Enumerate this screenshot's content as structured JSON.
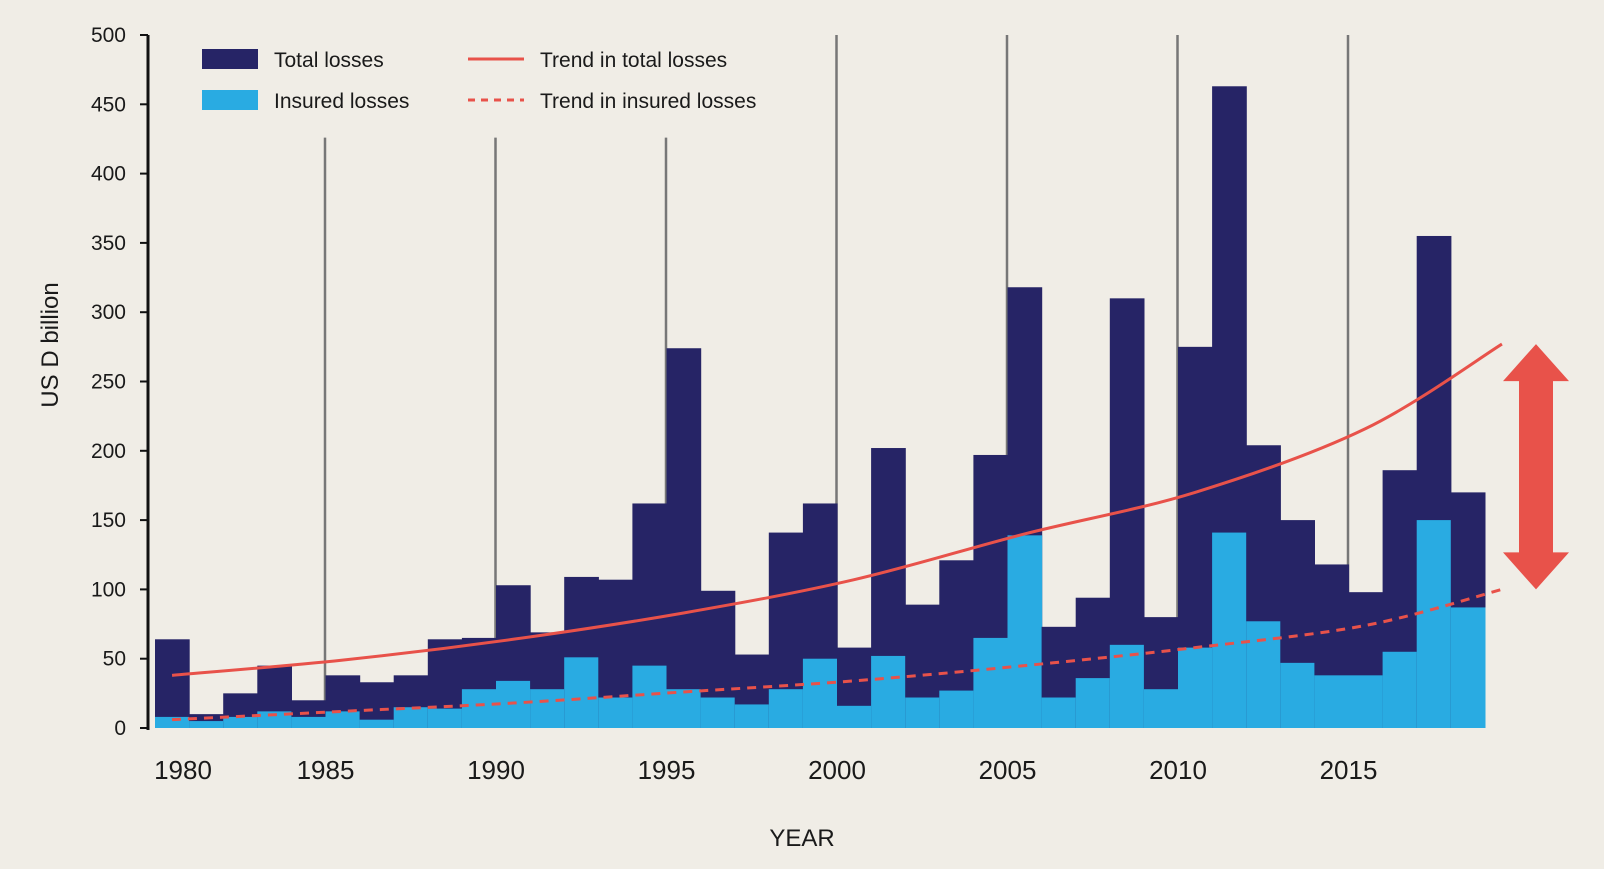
{
  "chart_data": {
    "type": "bar",
    "title": "",
    "xlabel": "YEAR",
    "ylabel": "US D billion",
    "ylim": [
      0,
      500
    ],
    "yticks": [
      0,
      50,
      100,
      150,
      200,
      250,
      300,
      350,
      400,
      450,
      500
    ],
    "xticks": [
      1980,
      1985,
      1990,
      1995,
      2000,
      2005,
      2010,
      2015
    ],
    "x": [
      1980,
      1981,
      1982,
      1983,
      1984,
      1985,
      1986,
      1987,
      1988,
      1989,
      1990,
      1991,
      1992,
      1993,
      1994,
      1995,
      1996,
      1997,
      1998,
      1999,
      2000,
      2001,
      2002,
      2003,
      2004,
      2005,
      2006,
      2007,
      2008,
      2009,
      2010,
      2011,
      2012,
      2013,
      2014,
      2015,
      2016,
      2017,
      2018
    ],
    "series": [
      {
        "name": "Total losses",
        "color": "#262466",
        "values": [
          64,
          10,
          25,
          45,
          20,
          38,
          33,
          38,
          64,
          65,
          103,
          69,
          109,
          107,
          162,
          274,
          99,
          53,
          141,
          162,
          58,
          202,
          89,
          121,
          197,
          318,
          73,
          94,
          310,
          80,
          275,
          463,
          204,
          150,
          118,
          98,
          186,
          355,
          170
        ]
      },
      {
        "name": "Insured losses",
        "color": "#29abe2",
        "values": [
          8,
          5,
          8,
          12,
          8,
          12,
          6,
          15,
          14,
          28,
          34,
          28,
          51,
          22,
          45,
          28,
          22,
          17,
          28,
          50,
          16,
          52,
          22,
          27,
          65,
          139,
          22,
          36,
          60,
          28,
          58,
          141,
          77,
          47,
          38,
          38,
          55,
          150,
          87
        ]
      },
      {
        "name": "Trend in total losses",
        "color": "#e8524a",
        "style": "solid",
        "x": [
          1980,
          1985,
          1990,
          1995,
          2000,
          2005,
          2010,
          2015,
          2019
        ],
        "values": [
          38,
          49,
          64,
          83,
          107,
          140,
          170,
          216,
          277
        ]
      },
      {
        "name": "Trend in insured losses",
        "color": "#e8524a",
        "style": "dashed",
        "x": [
          1980,
          1985,
          1990,
          1995,
          2000,
          2005,
          2010,
          2015,
          2019
        ],
        "values": [
          6,
          12,
          18,
          26,
          34,
          45,
          58,
          74,
          100
        ]
      }
    ],
    "vertical_markers": [
      1985,
      1990,
      1995,
      2000,
      2005,
      2010,
      2015
    ],
    "arrow": {
      "color": "#e8524a",
      "range": [
        100,
        277
      ]
    },
    "legend_position": "top-left",
    "grid": false
  }
}
